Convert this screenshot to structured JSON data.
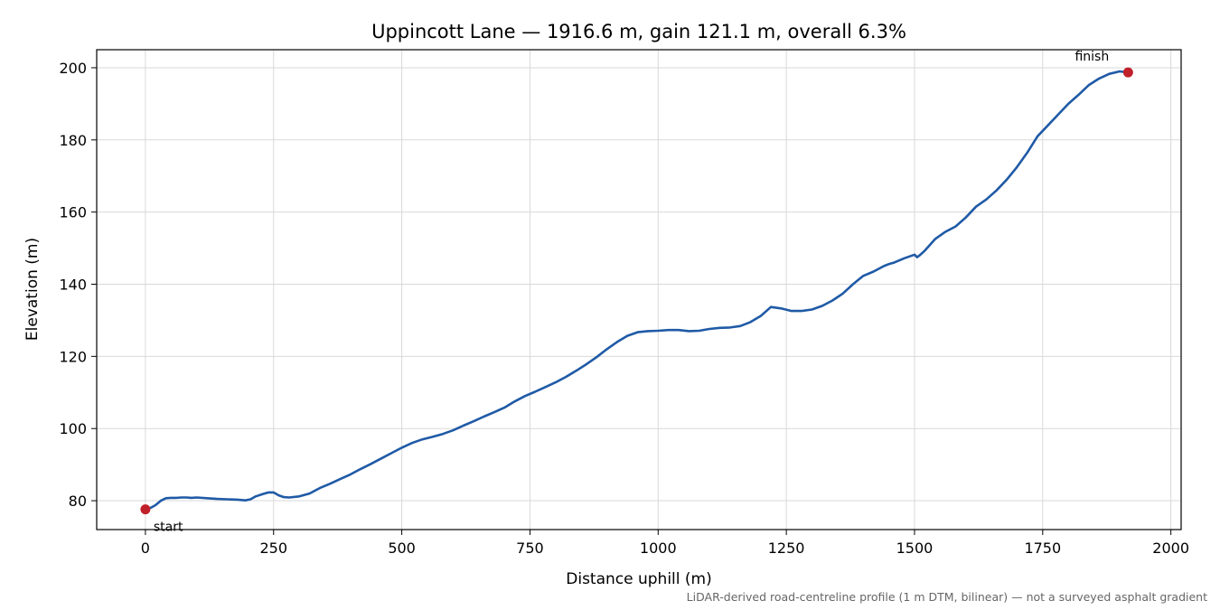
{
  "chart_data": {
    "type": "line",
    "title": "Uppincott Lane — 1916.6 m, gain 121.1 m, overall 6.3%",
    "xlabel": "Distance uphill (m)",
    "ylabel": "Elevation (m)",
    "xlim": [
      -95,
      2020
    ],
    "ylim": [
      72,
      205
    ],
    "xticks": [
      0,
      250,
      500,
      750,
      1000,
      1250,
      1500,
      1750,
      2000
    ],
    "yticks": [
      80,
      100,
      120,
      140,
      160,
      180,
      200
    ],
    "grid": true,
    "line_color": "#1f5aa6",
    "marker_color": "#c0202a",
    "series": [
      {
        "x": [
          0,
          10,
          20,
          30,
          40,
          50,
          60,
          70,
          80,
          90,
          100,
          120,
          140,
          160,
          180,
          195,
          205,
          215,
          230,
          240,
          250,
          260,
          270,
          280,
          300,
          320,
          340,
          360,
          380,
          400,
          420,
          440,
          460,
          480,
          500,
          520,
          540,
          560,
          580,
          600,
          620,
          640,
          660,
          680,
          700,
          720,
          740,
          760,
          780,
          800,
          820,
          840,
          860,
          880,
          900,
          920,
          940,
          960,
          980,
          1000,
          1020,
          1040,
          1060,
          1080,
          1100,
          1120,
          1140,
          1160,
          1180,
          1200,
          1220,
          1240,
          1260,
          1280,
          1300,
          1320,
          1340,
          1360,
          1380,
          1400,
          1420,
          1440,
          1450,
          1455,
          1460,
          1480,
          1500,
          1505,
          1510,
          1520,
          1540,
          1560,
          1580,
          1600,
          1620,
          1640,
          1660,
          1680,
          1700,
          1720,
          1740,
          1760,
          1780,
          1800,
          1820,
          1840,
          1860,
          1880,
          1900,
          1916.6
        ],
        "y": [
          77.6,
          78.0,
          78.8,
          80.0,
          80.7,
          80.8,
          80.8,
          80.9,
          80.9,
          80.8,
          80.9,
          80.7,
          80.5,
          80.4,
          80.3,
          80.1,
          80.4,
          81.2,
          81.9,
          82.3,
          82.3,
          81.5,
          81.0,
          80.9,
          81.2,
          82.0,
          83.5,
          84.7,
          86.0,
          87.3,
          88.8,
          90.2,
          91.7,
          93.2,
          94.7,
          96.0,
          97.0,
          97.7,
          98.5,
          99.5,
          100.8,
          102.0,
          103.3,
          104.5,
          105.8,
          107.5,
          109.0,
          110.2,
          111.5,
          112.8,
          114.3,
          116.0,
          117.8,
          119.8,
          122.0,
          124.0,
          125.7,
          126.7,
          127.0,
          127.1,
          127.3,
          127.3,
          127.0,
          127.1,
          127.6,
          127.9,
          128.0,
          128.4,
          129.5,
          131.2,
          133.7,
          133.3,
          132.6,
          132.6,
          133.0,
          134.0,
          135.5,
          137.4,
          140.0,
          142.3,
          143.5,
          145.0,
          145.6,
          145.8,
          146.0,
          147.2,
          148.2,
          147.5,
          148.0,
          149.3,
          152.5,
          154.5,
          156.0,
          158.5,
          161.5,
          163.5,
          166.0,
          169.0,
          172.5,
          176.5,
          181.0,
          184.0,
          187.0,
          190.0,
          192.5,
          195.2,
          197.0,
          198.3,
          199.0,
          198.7
        ]
      }
    ],
    "annotations": [
      {
        "text": "start",
        "x": 0,
        "y": 77.6
      },
      {
        "text": "finish",
        "x": 1916.6,
        "y": 198.7
      }
    ],
    "footnote": "LiDAR-derived road-centreline profile (1 m DTM, bilinear) — not a surveyed asphalt gradient"
  }
}
